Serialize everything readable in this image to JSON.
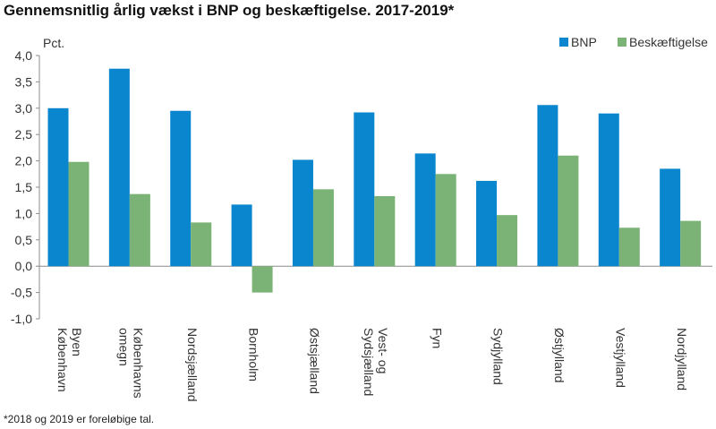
{
  "title": "Gennemsnitlig årlig vækst i BNP og beskæftigelse. 2017-2019*",
  "footnote": "*2018 og 2019 er foreløbige tal.",
  "colors": {
    "bnp": "#0a86cf",
    "beskaeftigelse": "#7ab375",
    "axis": "#8c8c8c"
  },
  "chart_data": {
    "type": "bar",
    "ylabel": "Pct.",
    "ylim": [
      -1.0,
      4.0
    ],
    "yticks": [
      "4,0",
      "3,5",
      "3,0",
      "2,5",
      "2,0",
      "1,5",
      "1,0",
      "0,5",
      "0,0",
      "-0,5",
      "-1,0"
    ],
    "grid": false,
    "legend_position": "top-right",
    "categories": [
      [
        "Byen",
        "København"
      ],
      [
        "Københavns",
        "omegn"
      ],
      [
        "Nordsjælland"
      ],
      [
        "Bornholm"
      ],
      [
        "Østsjælland"
      ],
      [
        "Vest- og",
        "Sydsjælland"
      ],
      [
        "Fyn"
      ],
      [
        "Sydjylland"
      ],
      [
        "Østjylland"
      ],
      [
        "Vestjylland"
      ],
      [
        "Nordjylland"
      ]
    ],
    "series": [
      {
        "name": "BNP",
        "values": [
          3.0,
          3.75,
          2.95,
          1.17,
          2.02,
          2.92,
          2.14,
          1.62,
          3.06,
          2.9,
          1.85
        ]
      },
      {
        "name": "Beskæftigelse",
        "values": [
          1.98,
          1.37,
          0.83,
          -0.5,
          1.46,
          1.33,
          1.75,
          0.97,
          2.1,
          0.73,
          0.86
        ]
      }
    ]
  }
}
